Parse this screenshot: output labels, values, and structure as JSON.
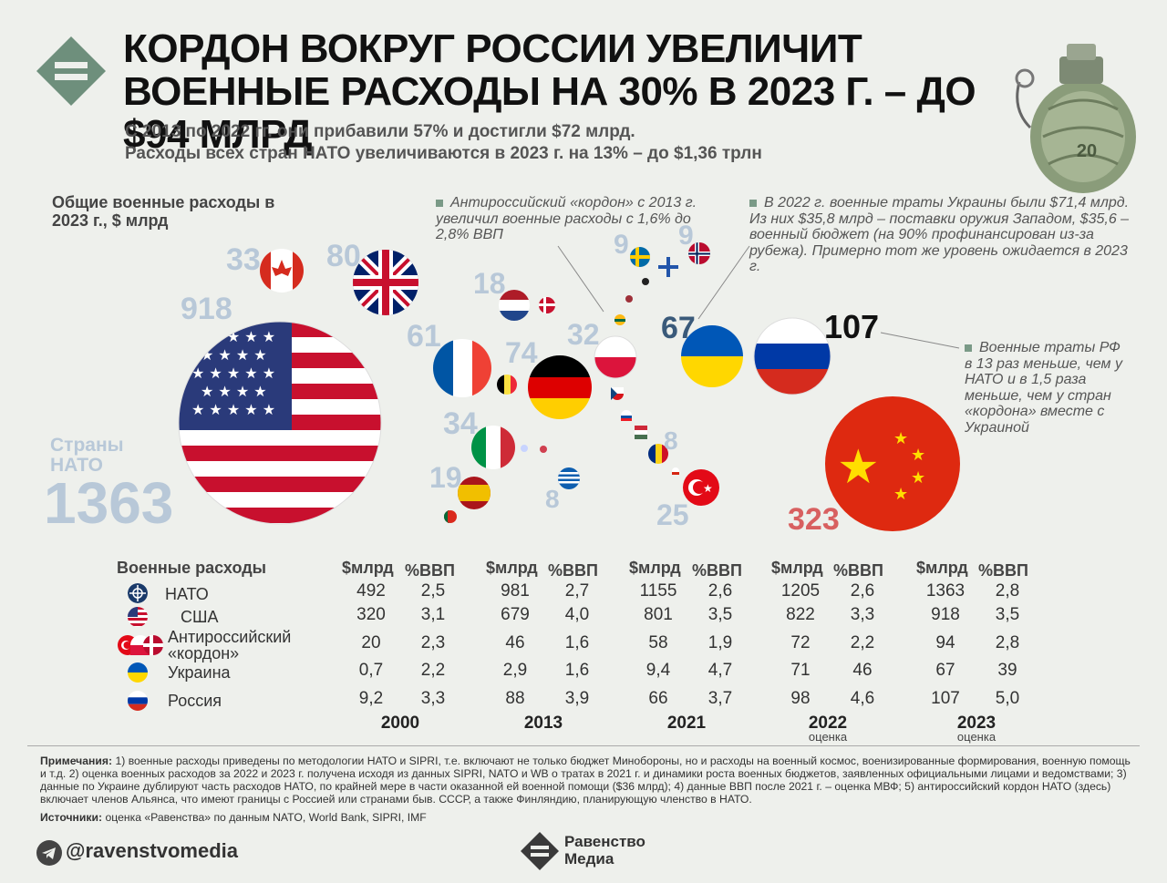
{
  "header": {
    "title": "КОРДОН ВОКРУГ РОССИИ УВЕЛИЧИТ ВОЕННЫЕ РАСХОДЫ НА 30% В 2023 г. – до $94 МЛРД",
    "subtitle_1": "С 2013 по 2022 гг. они прибавили 57% и достигли $72 млрд.",
    "subtitle_2": "Расходы всех стран НАТО увеличиваются в 2023 г. на 13% – до $1,36 трлн"
  },
  "bubbles": {
    "label": "Общие военные расходы в 2023 г., $ млрд",
    "nato_label": "Страны НАТО",
    "nato_total": "1363",
    "note_cordon": "Антироссийский «кордон» с 2013 г. увеличил военные расходы с 1,6% до 2,8% ВВП",
    "note_ukraine": "В 2022 г. военные траты Украины были $71,4 млрд. Из них $35,8 млрд – поставки оружия Западом, $35,6 – военный бюджет (на 90% профинансирован из-за рубежа). Примерно тот же уровень ожидается в 2023 г.",
    "note_russia": "Военные траты РФ в 13 раз меньше, чем у НАТО и в 1,5 раза меньше, чем у стран «кордона» вместе с Украиной"
  },
  "chart_data": {
    "type": "bubble",
    "unit": "$ млрд",
    "labeled_values": [
      {
        "flag": "usa",
        "value": "918"
      },
      {
        "flag": "canada",
        "value": "33"
      },
      {
        "flag": "uk",
        "value": "80"
      },
      {
        "flag": "netherlands",
        "value": "18"
      },
      {
        "flag": "france",
        "value": "61"
      },
      {
        "flag": "germany",
        "value": "74"
      },
      {
        "flag": "italy",
        "value": "34"
      },
      {
        "flag": "spain",
        "value": "19"
      },
      {
        "flag": "poland",
        "value": "32"
      },
      {
        "flag": "greece",
        "value": "8"
      },
      {
        "flag": "romania",
        "value": "8"
      },
      {
        "flag": "sweden",
        "value": "9"
      },
      {
        "flag": "norway",
        "value": "9"
      },
      {
        "flag": "turkey",
        "value": "25"
      },
      {
        "flag": "ukraine",
        "value": "67"
      },
      {
        "flag": "russia",
        "value": "107"
      },
      {
        "flag": "china",
        "value": "323"
      }
    ]
  },
  "table": {
    "title": "Военные расходы",
    "col_usd": "$млрд",
    "col_gdp": "%ВВП",
    "years": [
      {
        "year": "2000",
        "est": ""
      },
      {
        "year": "2013",
        "est": ""
      },
      {
        "year": "2021",
        "est": ""
      },
      {
        "year": "2022",
        "est": "оценка"
      },
      {
        "year": "2023",
        "est": "оценка"
      }
    ],
    "rows": [
      {
        "label": "НАТО",
        "values": [
          "492",
          "2,5",
          "981",
          "2,7",
          "1155",
          "2,6",
          "1205",
          "2,6",
          "1363",
          "2,8"
        ]
      },
      {
        "label": "США",
        "values": [
          "320",
          "3,1",
          "679",
          "4,0",
          "801",
          "3,5",
          "822",
          "3,3",
          "918",
          "3,5"
        ]
      },
      {
        "label": "Антироссийский «кордон»",
        "values": [
          "20",
          "2,3",
          "46",
          "1,6",
          "58",
          "1,9",
          "72",
          "2,2",
          "94",
          "2,8"
        ]
      },
      {
        "label": "Украина",
        "values": [
          "0,7",
          "2,2",
          "2,9",
          "1,6",
          "9,4",
          "4,7",
          "71",
          "46",
          "67",
          "39"
        ]
      },
      {
        "label": "Россия",
        "values": [
          "9,2",
          "3,3",
          "88",
          "3,9",
          "66",
          "3,7",
          "98",
          "4,6",
          "107",
          "5,0"
        ]
      }
    ]
  },
  "footer": {
    "notes_label": "Примечания:",
    "notes": "1) военные расходы приведены по методологии НАТО и SIPRI, т.е. включают не только бюджет Минобороны, но и расходы на военный космос, военизированные формирования, военную помощь и т.д. 2) оценка военных расходов за 2022 и 2023 г. получена исходя из данных SIPRI, NATO и WB о тратах в 2021 г. и динамики роста военных бюджетов, заявленных официальными лицами и ведомствами; 3) данные по Украине дублируют часть расходов НАТО, по крайней мере в части оказанной ей военной помощи ($36 млрд); 4) данные ВВП после 2021 г. – оценка МВФ; 5) антироссийский кордон НАТО (здесь) включает членов Альянса, что имеют границы с Россией или странами быв. СССР, а также Финляндию, планирующую членство в НАТО.",
    "sources_label": "Источники:",
    "sources": "оценка «Равенства» по данным NATO, World Bank, SIPRI, IMF",
    "telegram": "@ravenstvomedia",
    "brand_1": "Равенство",
    "brand_2": "Медиа"
  }
}
